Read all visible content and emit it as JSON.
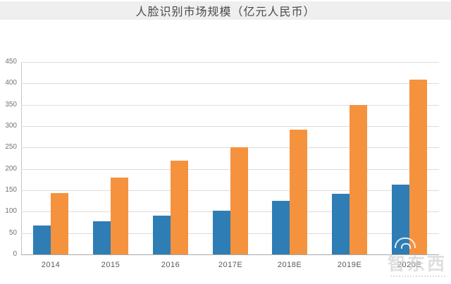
{
  "header": {
    "title": "人脸识别市场规模（亿元人民币）"
  },
  "watermark": {
    "text": "智东西"
  },
  "colors": {
    "series_blue": "#2f7db5",
    "series_orange": "#f5923e",
    "title_bar_bg": "#efefef",
    "grid": "#dcdcdc"
  },
  "chart_data": {
    "type": "bar",
    "title": "人脸识别市场规模（亿元人民币）",
    "categories": [
      "2014",
      "2015",
      "2016",
      "2017E",
      "2018E",
      "2019E",
      "2020E"
    ],
    "series": [
      {
        "name": "series-blue",
        "color": "#2f7db5",
        "values": [
          68,
          78,
          90,
          103,
          125,
          142,
          163
        ]
      },
      {
        "name": "series-orange",
        "color": "#f5923e",
        "values": [
          143,
          180,
          220,
          250,
          291,
          349,
          408
        ]
      }
    ],
    "xlabel": "",
    "ylabel": "",
    "ylim": [
      0,
      450
    ],
    "yticks": [
      0,
      50,
      100,
      150,
      200,
      250,
      300,
      350,
      400,
      450
    ],
    "grid": true,
    "legend": "none"
  }
}
